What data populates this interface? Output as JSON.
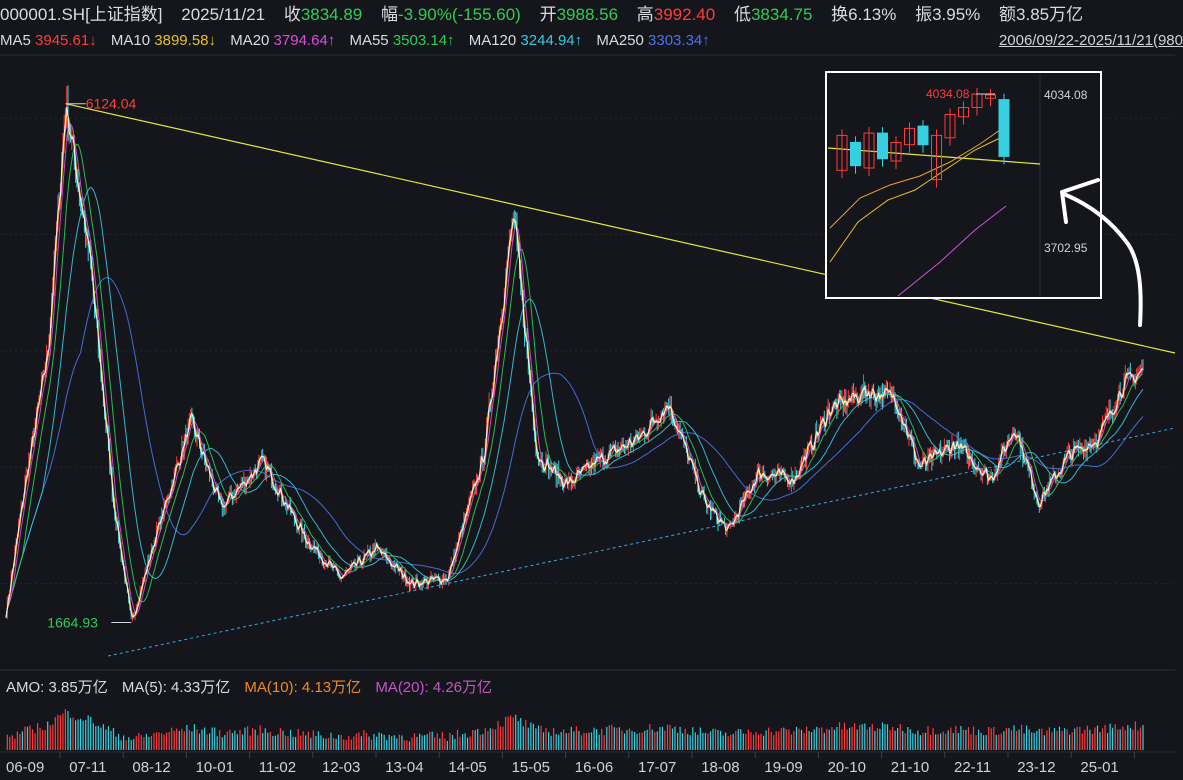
{
  "header": {
    "symbol": "000001.SH[上证指数]",
    "date": "2025/11/21",
    "close_label": "收",
    "close_value": "3834.89",
    "change_label": "幅",
    "change_value": "-3.90%(-155.60)",
    "open_label": "开",
    "open_value": "3988.56",
    "high_label": "高",
    "high_value": "3992.40",
    "low_label": "低",
    "low_value": "3834.75",
    "turnover_label": "换",
    "turnover_value": "6.13%",
    "amplitude_label": "振",
    "amplitude_value": "3.95%",
    "amount_label": "额",
    "amount_value": "3.85万亿"
  },
  "ma_bar": {
    "items": [
      {
        "label": "MA5",
        "value": "3945.61↓",
        "color": "#ffffff"
      },
      {
        "label": "MA10",
        "value": "3899.58↓",
        "color": "#e6c229"
      },
      {
        "label": "MA20",
        "value": "3794.64↑",
        "color": "#d94fd9"
      },
      {
        "label": "MA55",
        "value": "3503.14↑",
        "color": "#2ecc55"
      },
      {
        "label": "MA120",
        "value": "3244.94↑",
        "color": "#36c8e0"
      },
      {
        "label": "MA250",
        "value": "3303.34↑",
        "color": "#4a73e8"
      }
    ],
    "date_range": "2006/09/22-2025/11/21(980"
  },
  "volume_bar": {
    "amo": "AMO: 3.85万亿",
    "ma5": "MA(5): 4.33万亿",
    "ma10": "MA(10): 4.13万亿",
    "ma20": "MA(20): 4.26万亿",
    "colors": {
      "ma5": "#d8dbe0",
      "ma10": "#f08a24",
      "ma20": "#c555c5"
    }
  },
  "chart_data": {
    "type": "candlestick",
    "instrument": "000001.SH",
    "x_ticks": [
      "06-09",
      "07-11",
      "08-12",
      "10-01",
      "11-02",
      "12-03",
      "13-04",
      "14-05",
      "15-05",
      "16-06",
      "17-07",
      "18-08",
      "19-09",
      "20-10",
      "21-10",
      "22-11",
      "23-12",
      "25-01"
    ],
    "ylim": [
      1300,
      6500
    ],
    "annotations": {
      "peak": "6124.04",
      "trough": "1664.93"
    },
    "price_path": [
      {
        "t": 0,
        "v": 1750
      },
      {
        "t": 0.3,
        "v": 2800
      },
      {
        "t": 0.7,
        "v": 4000
      },
      {
        "t": 1.0,
        "v": 6124
      },
      {
        "t": 1.4,
        "v": 4800
      },
      {
        "t": 1.8,
        "v": 2700
      },
      {
        "t": 2.1,
        "v": 1665
      },
      {
        "t": 2.5,
        "v": 2400
      },
      {
        "t": 3.1,
        "v": 3400
      },
      {
        "t": 3.6,
        "v": 2650
      },
      {
        "t": 4.3,
        "v": 3050
      },
      {
        "t": 5.0,
        "v": 2400
      },
      {
        "t": 5.6,
        "v": 2050
      },
      {
        "t": 6.2,
        "v": 2300
      },
      {
        "t": 6.8,
        "v": 2000
      },
      {
        "t": 7.4,
        "v": 2050
      },
      {
        "t": 8.0,
        "v": 3100
      },
      {
        "t": 8.5,
        "v": 5178
      },
      {
        "t": 8.9,
        "v": 3100
      },
      {
        "t": 9.4,
        "v": 2850
      },
      {
        "t": 9.9,
        "v": 3050
      },
      {
        "t": 10.6,
        "v": 3250
      },
      {
        "t": 11.1,
        "v": 3550
      },
      {
        "t": 11.7,
        "v": 2700
      },
      {
        "t": 12.1,
        "v": 2450
      },
      {
        "t": 12.6,
        "v": 2950
      },
      {
        "t": 13.2,
        "v": 2900
      },
      {
        "t": 13.8,
        "v": 3500
      },
      {
        "t": 14.4,
        "v": 3650
      },
      {
        "t": 14.9,
        "v": 3600
      },
      {
        "t": 15.3,
        "v": 3000
      },
      {
        "t": 15.9,
        "v": 3200
      },
      {
        "t": 16.5,
        "v": 2900
      },
      {
        "t": 16.9,
        "v": 3350
      },
      {
        "t": 17.3,
        "v": 2700
      },
      {
        "t": 17.8,
        "v": 3100
      },
      {
        "t": 18.3,
        "v": 3250
      },
      {
        "t": 18.7,
        "v": 3700
      },
      {
        "t": 19.05,
        "v": 3835
      }
    ],
    "moving_averages": [
      {
        "name": "MA5",
        "value": 3945.61
      },
      {
        "name": "MA10",
        "value": 3899.58
      },
      {
        "name": "MA20",
        "value": 3794.64
      },
      {
        "name": "MA55",
        "value": 3503.14
      },
      {
        "name": "MA120",
        "value": 3244.94
      },
      {
        "name": "MA250",
        "value": 3303.34
      }
    ],
    "inset": {
      "high_label": "4034.08",
      "axis_top": "4034.08",
      "axis_bottom": "3702.95",
      "candles": [
        {
          "o": 3870,
          "c": 3945
        },
        {
          "o": 3930,
          "c": 3880
        },
        {
          "o": 3875,
          "c": 3950
        },
        {
          "o": 3950,
          "c": 3895
        },
        {
          "o": 3890,
          "c": 3930
        },
        {
          "o": 3925,
          "c": 3960
        },
        {
          "o": 3965,
          "c": 3925
        },
        {
          "o": 3850,
          "c": 3945
        },
        {
          "o": 3940,
          "c": 3990
        },
        {
          "o": 3985,
          "c": 4005
        },
        {
          "o": 4005,
          "c": 4034
        },
        {
          "o": 4025,
          "c": 4032
        },
        {
          "o": 4022,
          "c": 3900
        }
      ]
    }
  }
}
